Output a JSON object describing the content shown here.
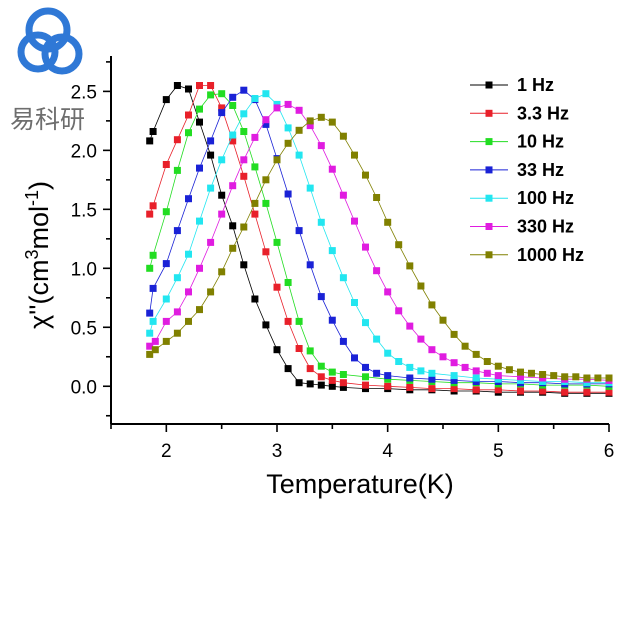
{
  "watermark": {
    "text": "易科研",
    "color": "#2f78d6"
  },
  "chart_data": {
    "type": "scatter",
    "title": "",
    "xlabel": "Temperature(K)",
    "ylabel_parts": [
      "χ''(cm",
      "3",
      "mol",
      "-1",
      ")"
    ],
    "xlim": [
      1.5,
      6.0
    ],
    "ylim": [
      -0.32,
      2.8
    ],
    "xticks": [
      2,
      3,
      4,
      5,
      6
    ],
    "xtick_labels": [
      "2",
      "3",
      "4",
      "5",
      "6"
    ],
    "yticks": [
      0.0,
      0.5,
      1.0,
      1.5,
      2.0,
      2.5
    ],
    "ytick_labels": [
      "0.0",
      "0.5",
      "1.0",
      "1.5",
      "2.0",
      "2.5"
    ],
    "legend_position": "top-right",
    "series": [
      {
        "name": "1 Hz",
        "color": "#000000",
        "x": [
          1.85,
          1.88,
          2.0,
          2.1,
          2.2,
          2.3,
          2.4,
          2.5,
          2.6,
          2.7,
          2.8,
          2.9,
          3.0,
          3.1,
          3.2,
          3.3,
          3.4,
          3.5,
          3.6,
          3.8,
          4.0,
          4.2,
          4.4,
          4.6,
          4.8,
          5.0,
          5.2,
          5.4,
          5.6,
          5.8,
          6.0
        ],
        "y": [
          2.08,
          2.16,
          2.43,
          2.55,
          2.52,
          2.24,
          1.96,
          1.62,
          1.36,
          1.03,
          0.74,
          0.52,
          0.31,
          0.15,
          0.03,
          0.02,
          0.01,
          0.0,
          -0.01,
          -0.02,
          -0.02,
          -0.03,
          -0.03,
          -0.04,
          -0.04,
          -0.05,
          -0.05,
          -0.05,
          -0.06,
          -0.06,
          -0.06
        ]
      },
      {
        "name": "3.3 Hz",
        "color": "#e8202a",
        "x": [
          1.85,
          1.88,
          2.0,
          2.1,
          2.2,
          2.3,
          2.4,
          2.5,
          2.6,
          2.7,
          2.8,
          2.9,
          3.0,
          3.1,
          3.2,
          3.3,
          3.4,
          3.5,
          3.6,
          3.8,
          4.0,
          4.2,
          4.4,
          4.6,
          4.8,
          5.0,
          5.2,
          5.4,
          5.6,
          5.8,
          6.0
        ],
        "y": [
          1.46,
          1.53,
          1.88,
          2.09,
          2.3,
          2.55,
          2.55,
          2.36,
          2.08,
          1.78,
          1.46,
          1.14,
          0.84,
          0.55,
          0.32,
          0.15,
          0.08,
          0.05,
          0.03,
          0.01,
          0.0,
          -0.01,
          -0.02,
          -0.02,
          -0.03,
          -0.03,
          -0.04,
          -0.04,
          -0.05,
          -0.05,
          -0.05
        ]
      },
      {
        "name": "10 Hz",
        "color": "#22dd22",
        "x": [
          1.85,
          1.88,
          2.0,
          2.1,
          2.2,
          2.3,
          2.4,
          2.5,
          2.6,
          2.7,
          2.8,
          2.9,
          3.0,
          3.1,
          3.2,
          3.3,
          3.4,
          3.5,
          3.6,
          3.8,
          4.0,
          4.2,
          4.4,
          4.6,
          4.8,
          5.0,
          5.2,
          5.4,
          5.6,
          5.8,
          6.0
        ],
        "y": [
          1.0,
          1.11,
          1.48,
          1.83,
          2.15,
          2.35,
          2.47,
          2.48,
          2.38,
          2.16,
          1.86,
          1.55,
          1.22,
          0.88,
          0.55,
          0.3,
          0.17,
          0.12,
          0.1,
          0.08,
          0.06,
          0.05,
          0.04,
          0.03,
          0.03,
          0.02,
          0.02,
          0.01,
          0.01,
          0.01,
          0.0
        ]
      },
      {
        "name": "33 Hz",
        "color": "#1a22d6",
        "x": [
          1.85,
          1.88,
          2.0,
          2.1,
          2.2,
          2.3,
          2.4,
          2.5,
          2.6,
          2.7,
          2.8,
          2.9,
          3.0,
          3.1,
          3.2,
          3.3,
          3.4,
          3.5,
          3.6,
          3.7,
          3.8,
          3.9,
          4.0,
          4.2,
          4.4,
          4.6,
          4.8,
          5.0,
          5.2,
          5.4,
          5.6,
          5.8,
          6.0
        ],
        "y": [
          0.62,
          0.83,
          1.04,
          1.32,
          1.59,
          1.85,
          2.08,
          2.32,
          2.45,
          2.51,
          2.43,
          2.22,
          1.93,
          1.63,
          1.32,
          1.03,
          0.76,
          0.56,
          0.38,
          0.24,
          0.16,
          0.11,
          0.09,
          0.07,
          0.06,
          0.05,
          0.04,
          0.04,
          0.03,
          0.03,
          0.02,
          0.02,
          0.02
        ]
      },
      {
        "name": "100 Hz",
        "color": "#22e6f0",
        "x": [
          1.85,
          1.88,
          2.0,
          2.1,
          2.2,
          2.3,
          2.4,
          2.5,
          2.6,
          2.7,
          2.8,
          2.9,
          3.0,
          3.1,
          3.2,
          3.3,
          3.4,
          3.5,
          3.6,
          3.7,
          3.8,
          3.9,
          4.0,
          4.1,
          4.2,
          4.3,
          4.4,
          4.6,
          4.8,
          5.0,
          5.2,
          5.4,
          5.6,
          5.8,
          6.0
        ],
        "y": [
          0.45,
          0.55,
          0.74,
          0.92,
          1.12,
          1.4,
          1.68,
          1.92,
          2.13,
          2.31,
          2.44,
          2.48,
          2.39,
          2.19,
          1.96,
          1.68,
          1.39,
          1.15,
          0.92,
          0.71,
          0.54,
          0.4,
          0.28,
          0.21,
          0.16,
          0.13,
          0.11,
          0.09,
          0.07,
          0.06,
          0.05,
          0.04,
          0.04,
          0.03,
          0.03
        ]
      },
      {
        "name": "330 Hz",
        "color": "#e01ce0",
        "x": [
          1.85,
          1.9,
          2.0,
          2.1,
          2.2,
          2.3,
          2.4,
          2.5,
          2.6,
          2.7,
          2.8,
          2.9,
          3.0,
          3.1,
          3.2,
          3.3,
          3.4,
          3.5,
          3.6,
          3.7,
          3.8,
          3.9,
          4.0,
          4.1,
          4.2,
          4.3,
          4.4,
          4.5,
          4.6,
          4.7,
          4.8,
          4.9,
          5.0,
          5.2,
          5.4,
          5.6,
          5.8,
          6.0
        ],
        "y": [
          0.34,
          0.38,
          0.55,
          0.63,
          0.8,
          1.0,
          1.22,
          1.46,
          1.7,
          1.92,
          2.11,
          2.26,
          2.36,
          2.39,
          2.34,
          2.21,
          2.04,
          1.84,
          1.62,
          1.4,
          1.18,
          0.98,
          0.8,
          0.64,
          0.51,
          0.4,
          0.31,
          0.25,
          0.2,
          0.16,
          0.13,
          0.11,
          0.09,
          0.08,
          0.07,
          0.06,
          0.06,
          0.05
        ]
      },
      {
        "name": "1000 Hz",
        "color": "#808000",
        "x": [
          1.85,
          1.9,
          2.0,
          2.1,
          2.2,
          2.3,
          2.4,
          2.5,
          2.6,
          2.7,
          2.8,
          2.9,
          3.0,
          3.1,
          3.2,
          3.3,
          3.4,
          3.5,
          3.6,
          3.7,
          3.8,
          3.9,
          4.0,
          4.1,
          4.2,
          4.3,
          4.4,
          4.5,
          4.6,
          4.7,
          4.8,
          4.9,
          5.0,
          5.1,
          5.2,
          5.3,
          5.4,
          5.5,
          5.6,
          5.7,
          5.8,
          5.9,
          6.0
        ],
        "y": [
          0.27,
          0.31,
          0.38,
          0.45,
          0.55,
          0.65,
          0.8,
          0.97,
          1.17,
          1.35,
          1.55,
          1.75,
          1.92,
          2.06,
          2.17,
          2.25,
          2.28,
          2.24,
          2.12,
          1.96,
          1.79,
          1.6,
          1.39,
          1.2,
          1.02,
          0.85,
          0.69,
          0.56,
          0.44,
          0.34,
          0.27,
          0.21,
          0.17,
          0.14,
          0.12,
          0.11,
          0.1,
          0.09,
          0.08,
          0.08,
          0.07,
          0.07,
          0.07
        ]
      }
    ]
  }
}
